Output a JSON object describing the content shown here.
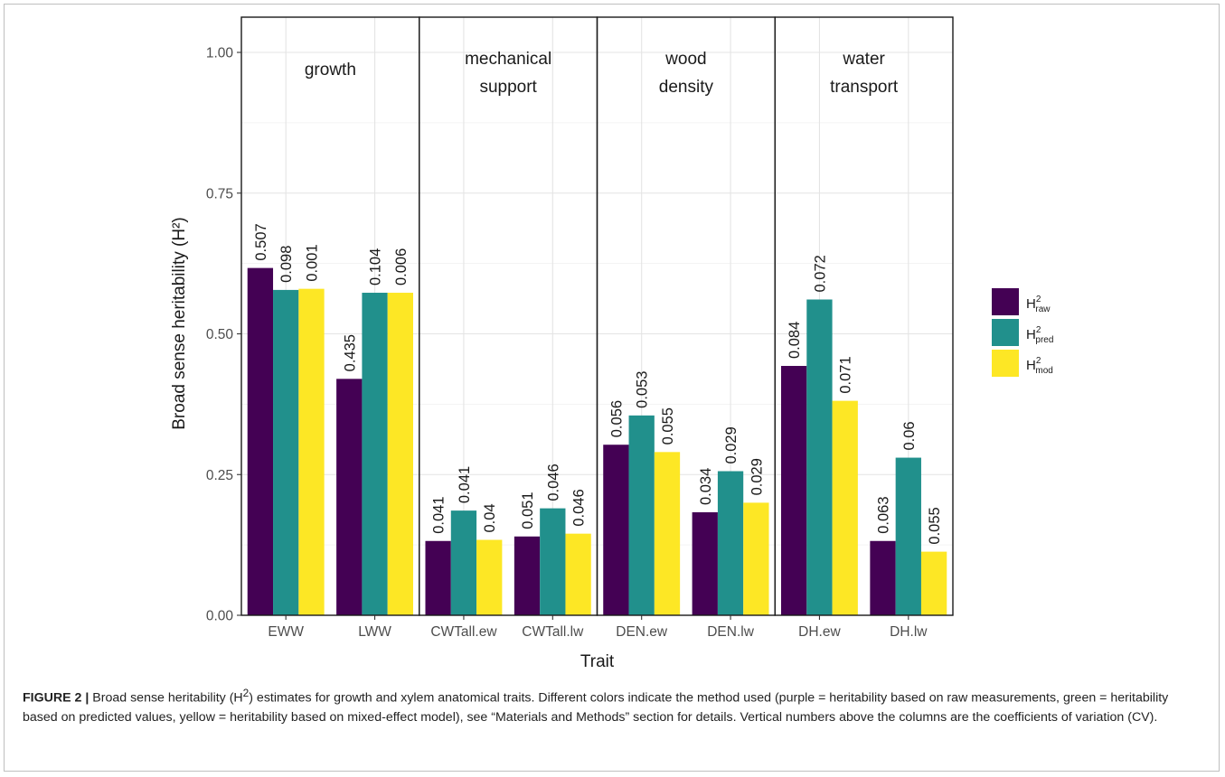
{
  "chart_data": {
    "type": "bar",
    "xlabel": "Trait",
    "ylabel": "Broad sense heritability (H²)",
    "ylim": [
      0,
      1.0
    ],
    "yticks": [
      "0.00",
      "0.25",
      "0.50",
      "0.75",
      "1.00"
    ],
    "grid": true,
    "legend_position": "right",
    "categories": [
      "EWW",
      "LWW",
      "CWTall.ew",
      "CWTall.lw",
      "DEN.ew",
      "DEN.lw",
      "DH.ew",
      "DH.lw"
    ],
    "facets": [
      {
        "label_lines": [
          "growth"
        ],
        "categories": [
          "EWW",
          "LWW"
        ]
      },
      {
        "label_lines": [
          "mechanical",
          "support"
        ],
        "categories": [
          "CWTall.ew",
          "CWTall.lw"
        ]
      },
      {
        "label_lines": [
          "wood",
          "density"
        ],
        "categories": [
          "DEN.ew",
          "DEN.lw"
        ]
      },
      {
        "label_lines": [
          "water",
          "transport"
        ],
        "categories": [
          "DH.ew",
          "DH.lw"
        ]
      }
    ],
    "series": [
      {
        "name": "H²raw",
        "legend_base": "H",
        "legend_sup": "2",
        "legend_sub": "raw",
        "color": "#440154",
        "values": [
          0.617,
          0.42,
          0.132,
          0.14,
          0.303,
          0.183,
          0.443,
          0.132
        ],
        "labels": [
          "0.507",
          "0.435",
          "0.041",
          "0.051",
          "0.056",
          "0.034",
          "0.084",
          "0.063"
        ]
      },
      {
        "name": "H²pred",
        "legend_base": "H",
        "legend_sup": "2",
        "legend_sub": "pred",
        "color": "#21908C",
        "values": [
          0.578,
          0.573,
          0.186,
          0.19,
          0.355,
          0.256,
          0.561,
          0.28
        ],
        "labels": [
          "0.098",
          "0.104",
          "0.041",
          "0.046",
          "0.053",
          "0.029",
          "0.072",
          "0.06"
        ]
      },
      {
        "name": "H²mod",
        "legend_base": "H",
        "legend_sup": "2",
        "legend_sub": "mod",
        "color": "#FDE725",
        "values": [
          0.58,
          0.573,
          0.134,
          0.145,
          0.29,
          0.2,
          0.381,
          0.113
        ],
        "labels": [
          "0.001",
          "0.006",
          "0.04",
          "0.046",
          "0.055",
          "0.029",
          "0.071",
          "0.055"
        ]
      }
    ]
  },
  "caption": {
    "label": "FIGURE 2 |",
    "text_a": " Broad sense heritability (H",
    "sup": "2",
    "text_b": ") estimates for growth and xylem anatomical traits. Different colors indicate the method used (purple = heritability based on raw measurements, green = heritability based on predicted values, yellow = heritability based on mixed-effect model), see “Materials and Methods” section for details. Vertical numbers above the columns are the coefficients of variation (CV)."
  }
}
